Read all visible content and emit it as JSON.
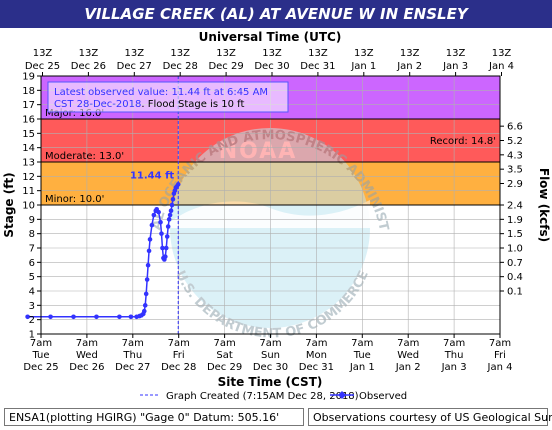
{
  "title": "VILLAGE CREEK (AL) AT AVENUE W IN ENSLEY",
  "top_axis_title": "Universal Time (UTC)",
  "bottom_axis_title": "Site Time (CST)",
  "left_axis_title": "Stage (ft)",
  "right_axis_title": "Flow (kcfs)",
  "top_ticks": [
    {
      "time": "13Z",
      "date": "Dec 25"
    },
    {
      "time": "13Z",
      "date": "Dec 26"
    },
    {
      "time": "13Z",
      "date": "Dec 27"
    },
    {
      "time": "13Z",
      "date": "Dec 28"
    },
    {
      "time": "13Z",
      "date": "Dec 29"
    },
    {
      "time": "13Z",
      "date": "Dec 30"
    },
    {
      "time": "13Z",
      "date": "Dec 31"
    },
    {
      "time": "13Z",
      "date": "Jan 1"
    },
    {
      "time": "13Z",
      "date": "Jan 2"
    },
    {
      "time": "13Z",
      "date": "Jan 3"
    },
    {
      "time": "13Z",
      "date": "Jan 4"
    }
  ],
  "bottom_ticks": [
    {
      "time": "7am",
      "day": "Tue",
      "date": "Dec 25"
    },
    {
      "time": "7am",
      "day": "Wed",
      "date": "Dec 26"
    },
    {
      "time": "7am",
      "day": "Thu",
      "date": "Dec 27"
    },
    {
      "time": "7am",
      "day": "Fri",
      "date": "Dec 28"
    },
    {
      "time": "7am",
      "day": "Sat",
      "date": "Dec 29"
    },
    {
      "time": "7am",
      "day": "Sun",
      "date": "Dec 30"
    },
    {
      "time": "7am",
      "day": "Mon",
      "date": "Dec 31"
    },
    {
      "time": "7am",
      "day": "Tue",
      "date": "Jan 1"
    },
    {
      "time": "7am",
      "day": "Wed",
      "date": "Jan 2"
    },
    {
      "time": "7am",
      "day": "Thu",
      "date": "Jan 3"
    },
    {
      "time": "7am",
      "day": "Fri",
      "date": "Jan 4"
    }
  ],
  "flow_ticks": [
    "6.6",
    "5.2",
    "4.3",
    "3.5",
    "2.9",
    "2.4",
    "1.9",
    "1.5",
    "1.0",
    "0.7",
    "0.4",
    "0.1"
  ],
  "flow_stages": [
    15.5,
    14.5,
    13.5,
    12.5,
    11.5,
    10,
    9,
    8,
    7,
    6,
    5,
    4
  ],
  "flood_categories": [
    {
      "name": "Major",
      "label": "Major: 16.0'",
      "from": 16,
      "to": 19,
      "color": "#cc66ff"
    },
    {
      "name": "Moderate",
      "label": "Moderate: 13.0'",
      "from": 13,
      "to": 16,
      "color": "#ff5a5a"
    },
    {
      "name": "Minor",
      "label": "Minor: 10.0'",
      "from": 10,
      "to": 13,
      "color": "#ffb040"
    }
  ],
  "record_label": "Record: 14.8'",
  "record_stage": 14.8,
  "info_box": {
    "line1": "Latest observed value: 11.44 ft at 6:45 AM",
    "line2_date": "CST 28-Dec-2018",
    "line2_rest": ". Flood Stage is 10 ft"
  },
  "latest_value_label": "11.44 ft",
  "legend": {
    "graph_created": "Graph Created (7:15AM Dec 28, 2018)",
    "observed": "Observed"
  },
  "footer": {
    "left": "ENSA1(plotting HGIRG) \"Gage 0\" Datum: 505.16'",
    "right": "Observations courtesy of US Geological Survey"
  },
  "watermark": {
    "ring_text": "NATIONAL OCEANIC AND ATMOSPHERIC ADMINISTRATION",
    "lower_text": "U.S. DEPARTMENT OF COMMERCE",
    "logo_text": "NOAA"
  },
  "colors": {
    "title_bar": "#2b2f8a",
    "observed": "#3333ff",
    "plot_background": "#ffffff",
    "grid": "#b0b0b0"
  },
  "chart_data": {
    "type": "line",
    "ylabel": "Stage (ft)",
    "y2label": "Flow (kcfs)",
    "xlabel": "Site Time (CST)",
    "ylim": [
      1,
      19
    ],
    "xlim": [
      "2018-12-25 07:00",
      "2019-01-04 07:00"
    ],
    "yticks": [
      1,
      2,
      3,
      4,
      5,
      6,
      7,
      8,
      9,
      10,
      11,
      12,
      13,
      14,
      15,
      16,
      17,
      18,
      19
    ],
    "series": [
      {
        "name": "Observed",
        "x": [
          "2018-12-25 00:00",
          "2018-12-25 12:00",
          "2018-12-26 00:00",
          "2018-12-26 12:00",
          "2018-12-27 00:00",
          "2018-12-27 06:00",
          "2018-12-27 09:00",
          "2018-12-27 10:30",
          "2018-12-27 11:30",
          "2018-12-27 12:30",
          "2018-12-27 13:00",
          "2018-12-27 13:30",
          "2018-12-27 14:00",
          "2018-12-27 14:30",
          "2018-12-27 15:00",
          "2018-12-27 15:30",
          "2018-12-27 16:00",
          "2018-12-27 17:00",
          "2018-12-27 18:00",
          "2018-12-27 19:00",
          "2018-12-27 19:30",
          "2018-12-27 20:30",
          "2018-12-27 21:30",
          "2018-12-27 22:00",
          "2018-12-27 22:30",
          "2018-12-27 23:00",
          "2018-12-27 23:30",
          "2018-12-28 00:00",
          "2018-12-28 00:30",
          "2018-12-28 01:00",
          "2018-12-28 01:30",
          "2018-12-28 02:00",
          "2018-12-28 02:30",
          "2018-12-28 03:00",
          "2018-12-28 03:30",
          "2018-12-28 04:00",
          "2018-12-28 04:30",
          "2018-12-28 05:00",
          "2018-12-28 05:30",
          "2018-12-28 06:00",
          "2018-12-28 06:45"
        ],
        "y": [
          2.2,
          2.2,
          2.2,
          2.2,
          2.2,
          2.2,
          2.2,
          2.25,
          2.3,
          2.4,
          2.6,
          3.0,
          3.8,
          4.8,
          5.8,
          6.8,
          7.6,
          8.6,
          9.3,
          9.6,
          9.7,
          9.5,
          8.8,
          8.0,
          7.0,
          6.3,
          6.2,
          6.4,
          7.0,
          7.8,
          8.5,
          9.0,
          9.3,
          9.6,
          10.0,
          10.4,
          10.8,
          11.0,
          11.2,
          11.3,
          11.44
        ]
      }
    ]
  }
}
